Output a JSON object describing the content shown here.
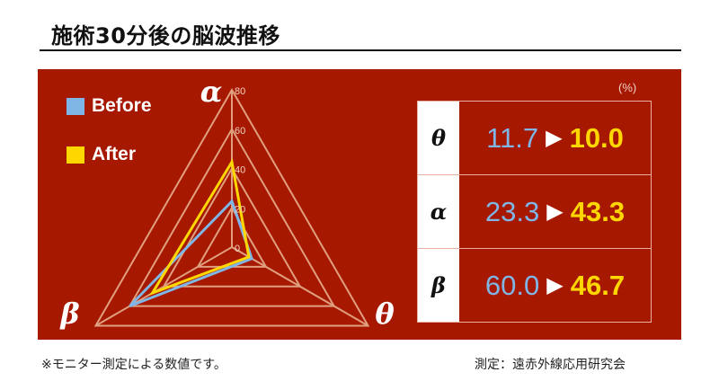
{
  "title": "施術30分後の脳波推移",
  "chart_data": {
    "type": "radar",
    "axes": [
      "α",
      "θ",
      "β"
    ],
    "rlim": [
      0,
      80
    ],
    "ticks": [
      "0",
      "20",
      "40",
      "60",
      "80"
    ],
    "series": [
      {
        "name": "Before",
        "color": "#7fb6e6",
        "values": [
          23.3,
          11.7,
          60.0
        ]
      },
      {
        "name": "After",
        "color": "#ffd700",
        "values": [
          43.3,
          10.0,
          46.7
        ]
      }
    ],
    "legend": "top-left"
  },
  "table": {
    "unit": "(%)",
    "rows": [
      {
        "label": "θ",
        "before": "11.7",
        "after": "10.0"
      },
      {
        "label": "α",
        "before": "23.3",
        "after": "43.3"
      },
      {
        "label": "β",
        "before": "60.0",
        "after": "46.7"
      }
    ],
    "arrow": "▶"
  },
  "colors": {
    "panel": "#a61800",
    "grid": "#e0a080"
  },
  "footer": {
    "note": "※モニター測定による数値です。",
    "source": "測定：遠赤外線応用研究会"
  }
}
